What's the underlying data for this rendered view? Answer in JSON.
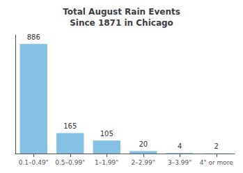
{
  "chart_data": {
    "type": "bar",
    "title": "Total August Rain Events\nSince 1871 in Chicago",
    "categories": [
      "0.1–0.49\"",
      "0.5–0.99\"",
      "1–1.99\"",
      "2–2.99\"",
      "3–3.99\"",
      "4\" or more"
    ],
    "values": [
      886,
      165,
      105,
      20,
      4,
      2
    ],
    "color": "#85c1e2",
    "ylim": [
      0,
      960
    ],
    "yticks": [],
    "data_labels": true,
    "tick_labels": "x",
    "grid": false
  }
}
